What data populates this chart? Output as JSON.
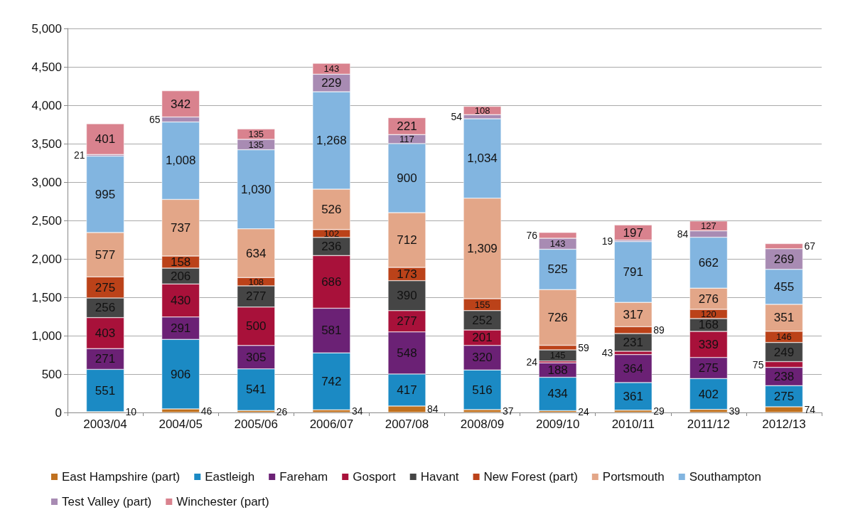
{
  "chart_data": {
    "type": "bar",
    "stacked": true,
    "grid": "y",
    "legend": "bottom",
    "categories": [
      "2003/04",
      "2004/05",
      "2005/06",
      "2006/07",
      "2007/08",
      "2008/09",
      "2009/10",
      "2010/11",
      "2011/12",
      "2012/13"
    ],
    "ylim": [
      0,
      5000
    ],
    "yticks": [
      {
        "value": 0,
        "label": "0"
      },
      {
        "value": 500,
        "label": "500"
      },
      {
        "value": 1000,
        "label": "1,000"
      },
      {
        "value": 1500,
        "label": "1,500"
      },
      {
        "value": 2000,
        "label": "2,000"
      },
      {
        "value": 2500,
        "label": "2,500"
      },
      {
        "value": 3000,
        "label": "3,000"
      },
      {
        "value": 3500,
        "label": "3,500"
      },
      {
        "value": 4000,
        "label": "4,000"
      },
      {
        "value": 4500,
        "label": "4,500"
      },
      {
        "value": 5000,
        "label": "5,000"
      }
    ],
    "series": [
      {
        "name": "East Hampshire (part)",
        "color": "#c0711f",
        "values": [
          10,
          46,
          26,
          34,
          84,
          37,
          24,
          29,
          39,
          74
        ],
        "value_labels": [
          "10",
          "46",
          "26",
          "34",
          "84",
          "37",
          "24",
          "29",
          "39",
          "74"
        ]
      },
      {
        "name": "Eastleigh",
        "color": "#1b8ac4",
        "values": [
          551,
          906,
          541,
          742,
          417,
          516,
          434,
          361,
          402,
          275
        ],
        "value_labels": [
          "551",
          "906",
          "541",
          "742",
          "417",
          "516",
          "434",
          "361",
          "402",
          "275"
        ]
      },
      {
        "name": "Fareham",
        "color": "#6b2175",
        "values": [
          271,
          291,
          305,
          581,
          548,
          320,
          188,
          364,
          275,
          238
        ],
        "value_labels": [
          "271",
          "291",
          "305",
          "581",
          "548",
          "320",
          "188",
          "364",
          "275",
          "238"
        ]
      },
      {
        "name": "Gosport",
        "color": "#a8113a",
        "values": [
          403,
          430,
          500,
          686,
          277,
          201,
          24,
          43,
          339,
          75
        ],
        "value_labels": [
          "403",
          "430",
          "500",
          "686",
          "277",
          "201",
          "24",
          "43",
          "339",
          "75"
        ]
      },
      {
        "name": "Havant",
        "color": "#454545",
        "values": [
          256,
          206,
          277,
          236,
          390,
          252,
          145,
          231,
          168,
          249
        ],
        "value_labels": [
          "256",
          "206",
          "277",
          "236",
          "390",
          "252",
          "145",
          "231",
          "168",
          "249"
        ]
      },
      {
        "name": "New Forest (part)",
        "color": "#bb4219",
        "values": [
          275,
          158,
          108,
          102,
          173,
          155,
          59,
          89,
          120,
          146
        ],
        "value_labels": [
          "275",
          "158",
          "108",
          "102",
          "173",
          "155",
          "59",
          "89",
          "120",
          "146"
        ]
      },
      {
        "name": "Portsmouth",
        "color": "#e3a688",
        "values": [
          577,
          737,
          634,
          526,
          712,
          1309,
          726,
          317,
          276,
          351
        ],
        "value_labels": [
          "577",
          "737",
          "634",
          "526",
          "712",
          "1,309",
          "726",
          "317",
          "276",
          "351"
        ]
      },
      {
        "name": "Southampton",
        "color": "#82b5e0",
        "values": [
          995,
          1008,
          1030,
          1268,
          900,
          1034,
          525,
          791,
          662,
          455
        ],
        "value_labels": [
          "995",
          "1,008",
          "1,030",
          "1,268",
          "900",
          "1,034",
          "525",
          "791",
          "662",
          "455"
        ]
      },
      {
        "name": "Test Valley (part)",
        "color": "#a88bb3",
        "values": [
          21,
          65,
          135,
          229,
          117,
          54,
          143,
          19,
          84,
          269
        ],
        "value_labels": [
          "21",
          "65",
          "135",
          "229",
          "117",
          "54",
          "143",
          "19",
          "84",
          "269"
        ]
      },
      {
        "name": "Winchester (part)",
        "color": "#d9828e",
        "values": [
          401,
          342,
          135,
          143,
          221,
          108,
          76,
          197,
          127,
          67
        ],
        "value_labels": [
          "401",
          "342",
          "135",
          "143",
          "221",
          "108",
          "76",
          "197",
          "127",
          "67"
        ]
      }
    ]
  }
}
